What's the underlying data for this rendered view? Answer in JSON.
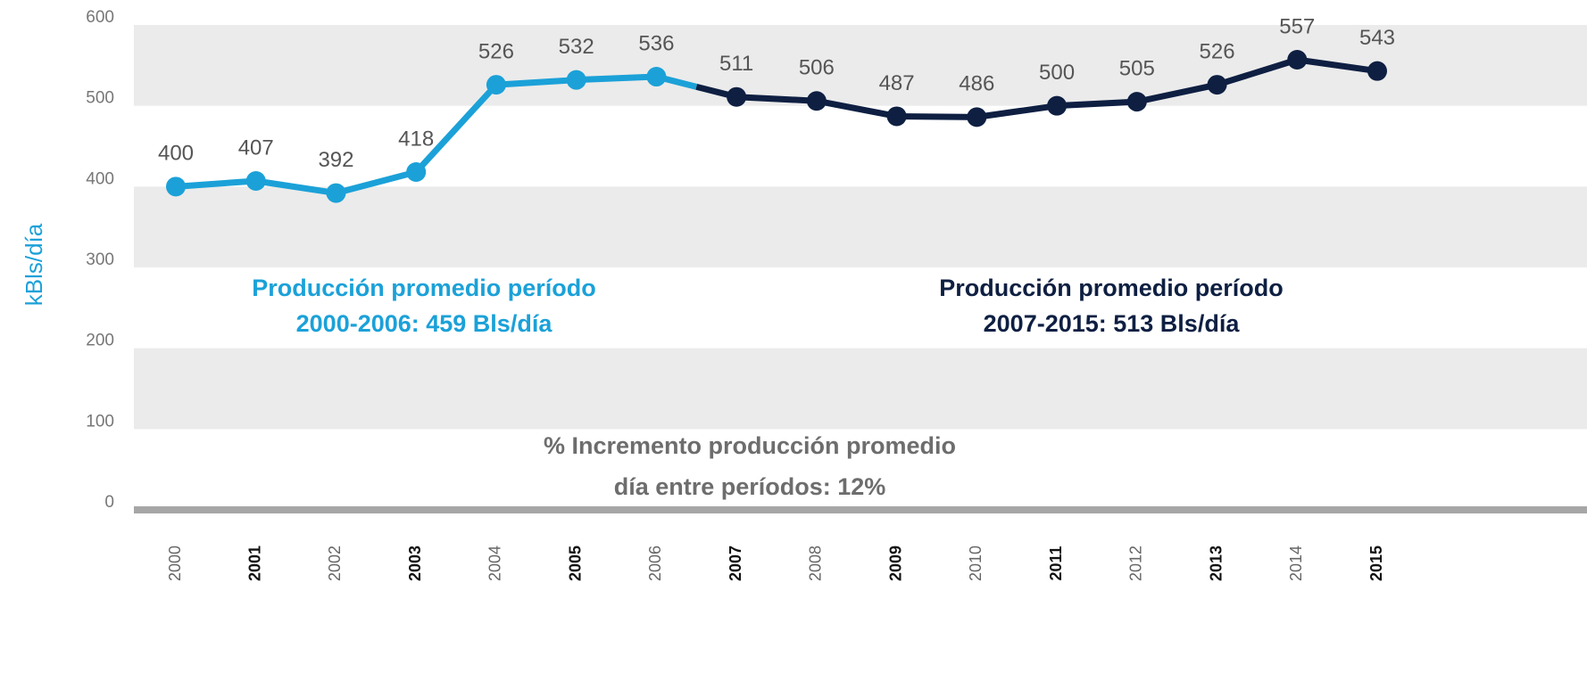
{
  "chart_data": {
    "type": "line",
    "y_label": "kBls/día",
    "categories": [
      "2000",
      "2001",
      "2002",
      "2003",
      "2004",
      "2005",
      "2006",
      "2007",
      "2008",
      "2009",
      "2010",
      "2011",
      "2012",
      "2013",
      "2014",
      "2015"
    ],
    "series": [
      {
        "color": "#1ba1d8",
        "values": [
          400,
          407,
          392,
          418,
          526,
          532,
          536,
          null,
          null,
          null,
          null,
          null,
          null,
          null,
          null,
          null
        ]
      },
      {
        "color": "#0e1f42",
        "values": [
          null,
          null,
          null,
          null,
          null,
          null,
          null,
          511,
          506,
          487,
          486,
          500,
          505,
          526,
          557,
          543
        ]
      }
    ],
    "ylim": [
      0,
      600
    ],
    "yticks": [
      0,
      100,
      200,
      300,
      400,
      500,
      600
    ],
    "grid": true,
    "annotations": [
      {
        "lines": [
          "Producción promedio período",
          "2000-2006: 459 Bls/día"
        ],
        "color": "#1ba1d8"
      },
      {
        "lines": [
          "Producción promedio período",
          "2007-2015: 513 Bls/día"
        ],
        "color": "#0e1f42"
      },
      {
        "lines": [
          "% Incremento producción promedio",
          "día entre períodos: 12%"
        ],
        "color": "#6d6d6d"
      }
    ]
  }
}
